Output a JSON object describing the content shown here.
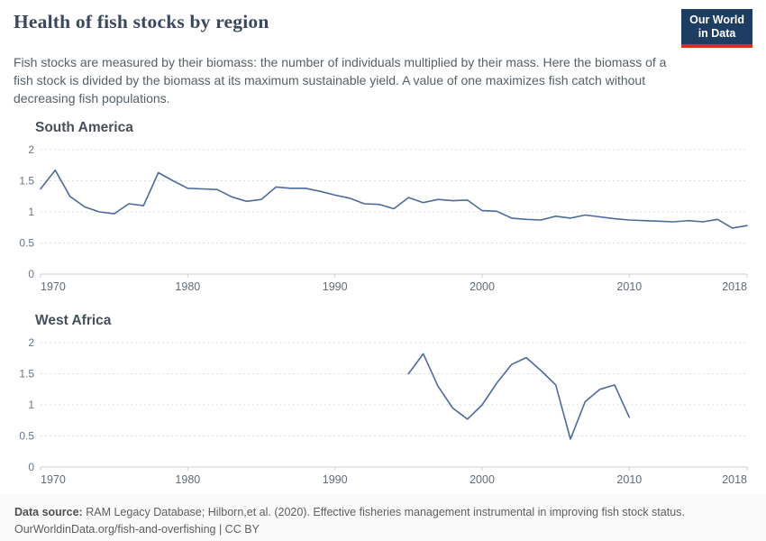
{
  "header": {
    "title": "Health of fish stocks by region",
    "logo": {
      "line1": "Our World",
      "line2": "in Data"
    },
    "subtitle": "Fish stocks are measured by their biomass: the number of individuals multiplied by their mass. Here the biomass of a fish stock is divided by the biomass at its maximum sustainable yield. A value of one maximizes fish catch without decreasing fish populations."
  },
  "colors": {
    "logo_bg": "#1d3d63",
    "logo_accent": "#dc2d20",
    "line": "#4C6B9B"
  },
  "chart_data": [
    {
      "type": "line",
      "title": "South America",
      "x": [
        1970,
        1971,
        1972,
        1973,
        1974,
        1975,
        1976,
        1977,
        1978,
        1979,
        1980,
        1981,
        1982,
        1983,
        1984,
        1985,
        1986,
        1987,
        1988,
        1989,
        1990,
        1991,
        1992,
        1993,
        1994,
        1995,
        1996,
        1997,
        1998,
        1999,
        2000,
        2001,
        2002,
        2003,
        2004,
        2005,
        2006,
        2007,
        2008,
        2009,
        2010,
        2011,
        2012,
        2013,
        2014,
        2015,
        2016,
        2017,
        2018
      ],
      "values": [
        1.37,
        1.67,
        1.25,
        1.08,
        1.0,
        0.97,
        1.13,
        1.1,
        1.63,
        1.5,
        1.38,
        1.37,
        1.36,
        1.24,
        1.17,
        1.2,
        1.4,
        1.38,
        1.38,
        1.33,
        1.27,
        1.22,
        1.13,
        1.12,
        1.05,
        1.23,
        1.15,
        1.2,
        1.18,
        1.19,
        1.02,
        1.01,
        0.9,
        0.88,
        0.87,
        0.93,
        0.9,
        0.95,
        0.92,
        0.89,
        0.87,
        0.86,
        0.85,
        0.84,
        0.86,
        0.84,
        0.88,
        0.74,
        0.78
      ],
      "xlim": [
        1970,
        2018
      ],
      "ylim": [
        0,
        2
      ],
      "xticks": [
        1970,
        1980,
        1990,
        2000,
        2010,
        2018
      ],
      "yticks": [
        0,
        0.5,
        1,
        1.5,
        2
      ],
      "grid": true,
      "line_color": "#4C6B9B"
    },
    {
      "type": "line",
      "title": "West Africa",
      "x": [
        1995,
        1996,
        1997,
        1998,
        1999,
        2000,
        2001,
        2002,
        2003,
        2004,
        2005,
        2006,
        2007,
        2008,
        2009,
        2010
      ],
      "values": [
        1.5,
        1.82,
        1.3,
        0.95,
        0.77,
        1.0,
        1.35,
        1.65,
        1.76,
        1.55,
        1.32,
        0.45,
        1.05,
        1.25,
        1.32,
        0.8
      ],
      "xlim": [
        1970,
        2018
      ],
      "ylim": [
        0,
        2
      ],
      "xticks": [
        1970,
        1980,
        1990,
        2000,
        2010,
        2018
      ],
      "yticks": [
        0,
        0.5,
        1,
        1.5,
        2
      ],
      "grid": true,
      "line_color": "#4C6B9B"
    }
  ],
  "footer": {
    "source_label": "Data source:",
    "source_text": " RAM Legacy Database; Hilborn,et al. (2020). Effective fisheries management instrumental in improving fish stock status.",
    "link": "OurWorldinData.org/fish-and-overfishing",
    "license_suffix": " | CC BY"
  }
}
